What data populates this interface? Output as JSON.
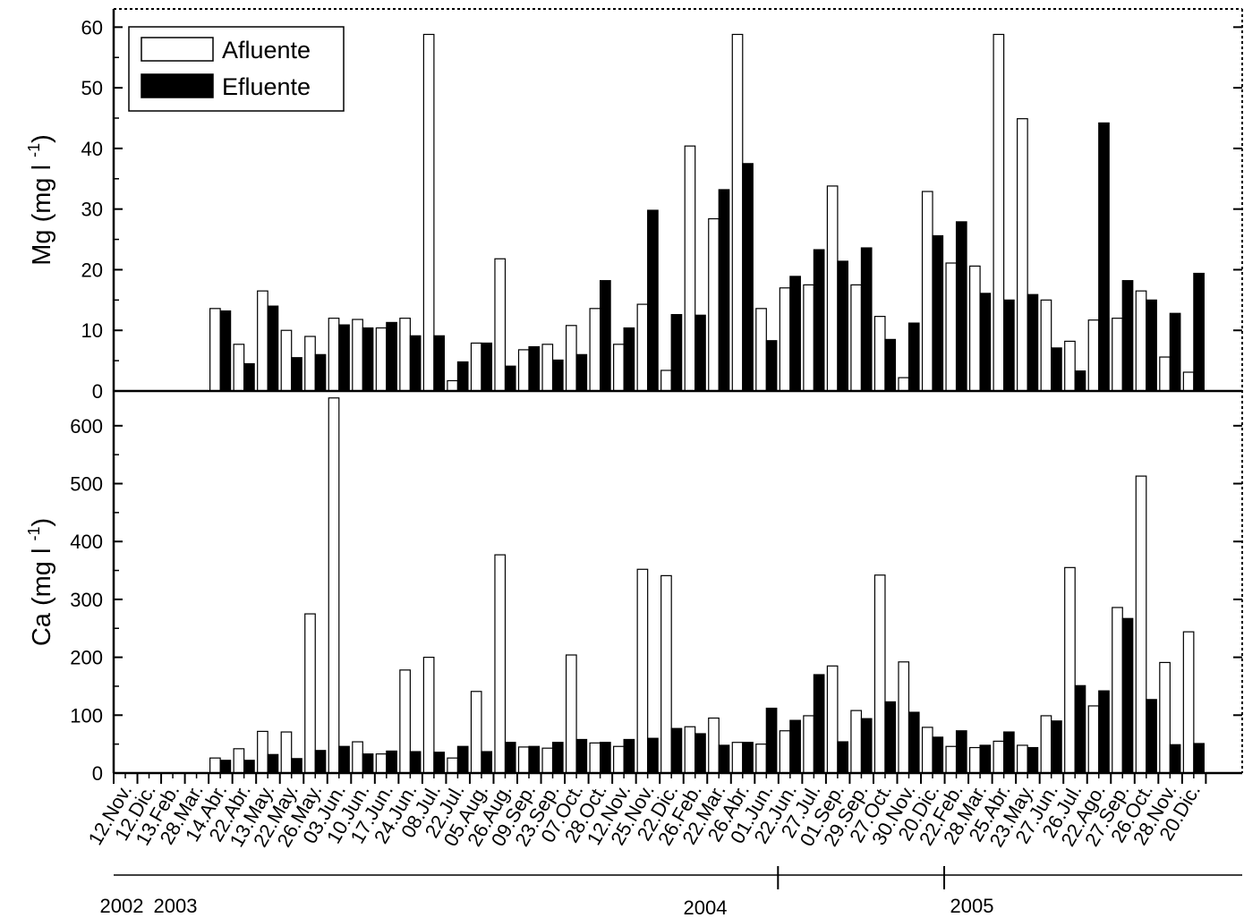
{
  "chart_data": {
    "type": "bar",
    "categories": [
      "12.Nov.",
      "12.Dic.",
      "13.Feb.",
      "28.Mar.",
      "14.Abr.",
      "22.Abr.",
      "13.May.",
      "22.May.",
      "26.May.",
      "03.Jun.",
      "10.Jun.",
      "17.Jun.",
      "24.Jun.",
      "08.Jul.",
      "22.Jul.",
      "05.Aug.",
      "26.Aug.",
      "09.Sep.",
      "23.Sep.",
      "07.Oct.",
      "28.Oct.",
      "12.Nov.",
      "25.Nov.",
      "22.Dic.",
      "26.Feb.",
      "22.Mar.",
      "26.Abr.",
      "01.Jun.",
      "22.Jun.",
      "27.Jul.",
      "01.Sep.",
      "29.Sep.",
      "27.Oct.",
      "30.Nov.",
      "20.Dic.",
      "22.Feb.",
      "28.Mar.",
      "25.Abr.",
      "23.May.",
      "27.Jun.",
      "26.Jul.",
      "22.Ago.",
      "27.Sep.",
      "26.Oct.",
      "28.Nov.",
      "20.Dic."
    ],
    "years": [
      {
        "label": "2002",
        "start_index": 0
      },
      {
        "label": "2003",
        "start_index": 1
      },
      {
        "label": "2004",
        "start_index": 17
      },
      {
        "label": "2005",
        "start_index": 35
      }
    ],
    "year_dividers_after_index": [
      27,
      34
    ],
    "legend": {
      "position": "top-left",
      "entries": [
        "Afluente",
        "Efluente"
      ]
    },
    "colors": {
      "afluente_fill": "#ffffff",
      "efluente_fill": "#000000",
      "axis": "#000000"
    },
    "panels": [
      {
        "name": "mg",
        "ylabel": "Mg (mg l",
        "ylabel_sup": "-1",
        "ylabel_close": ")",
        "ylim": [
          0,
          63
        ],
        "yticks": [
          0,
          10,
          20,
          30,
          40,
          50,
          60
        ],
        "series": [
          {
            "name": "Afluente",
            "values": [
              0,
              0,
              0,
              0,
              13.6,
              7.7,
              16.5,
              10,
              9,
              12,
              11.8,
              10.4,
              12,
              58.8,
              1.7,
              7.9,
              21.8,
              6.8,
              7.7,
              10.8,
              13.6,
              7.7,
              14.3,
              3.4,
              40.4,
              28.4,
              58.8,
              13.6,
              17,
              17.5,
              33.8,
              17.5,
              12.3,
              2.2,
              32.9,
              21.1,
              20.6,
              58.8,
              44.9,
              15,
              8.2,
              11.7,
              12,
              16.5,
              5.6,
              3.1
            ]
          },
          {
            "name": "Efluente",
            "values": [
              0,
              0,
              0,
              0,
              13.2,
              4.5,
              14,
              5.5,
              6,
              10.9,
              10.4,
              11.3,
              9.1,
              9.1,
              4.8,
              7.9,
              4.1,
              7.3,
              5.1,
              6,
              18.2,
              10.4,
              29.8,
              12.6,
              12.5,
              33.2,
              37.5,
              8.3,
              18.9,
              23.3,
              21.4,
              23.6,
              8.5,
              11.2,
              25.6,
              27.9,
              16.1,
              15,
              15.9,
              7.1,
              3.3,
              44.2,
              18.2,
              15,
              12.8,
              19.4
            ]
          }
        ]
      },
      {
        "name": "ca",
        "ylabel": "Ca (mg l",
        "ylabel_sup": "-1",
        "ylabel_close": ")",
        "ylim": [
          0,
          660
        ],
        "yticks": [
          0,
          100,
          200,
          300,
          400,
          500,
          600
        ],
        "series": [
          {
            "name": "Afluente",
            "values": [
              0,
              0,
              0,
              0,
              26,
              42,
              72,
              71,
              275,
              648,
              54,
              33,
              178,
              200,
              26,
              141,
              377,
              45,
              43,
              204,
              52,
              46,
              352,
              341,
              80,
              95,
              53,
              50,
              73,
              99,
              185,
              108,
              342,
              192,
              79,
              46,
              44,
              55,
              48,
              99,
              355,
              116,
              286,
              513,
              191,
              244
            ]
          },
          {
            "name": "Efluente",
            "values": [
              0,
              0,
              0,
              0,
              22,
              22,
              32,
              25,
              39,
              46,
              33,
              38,
              37,
              36,
              46,
              37,
              53,
              46,
              53,
              58,
              53,
              58,
              60,
              77,
              68,
              48,
              53,
              112,
              91,
              170,
              54,
              94,
              123,
              105,
              62,
              73,
              48,
              71,
              44,
              90,
              151,
              142,
              267,
              127,
              49,
              51
            ]
          }
        ]
      }
    ]
  }
}
